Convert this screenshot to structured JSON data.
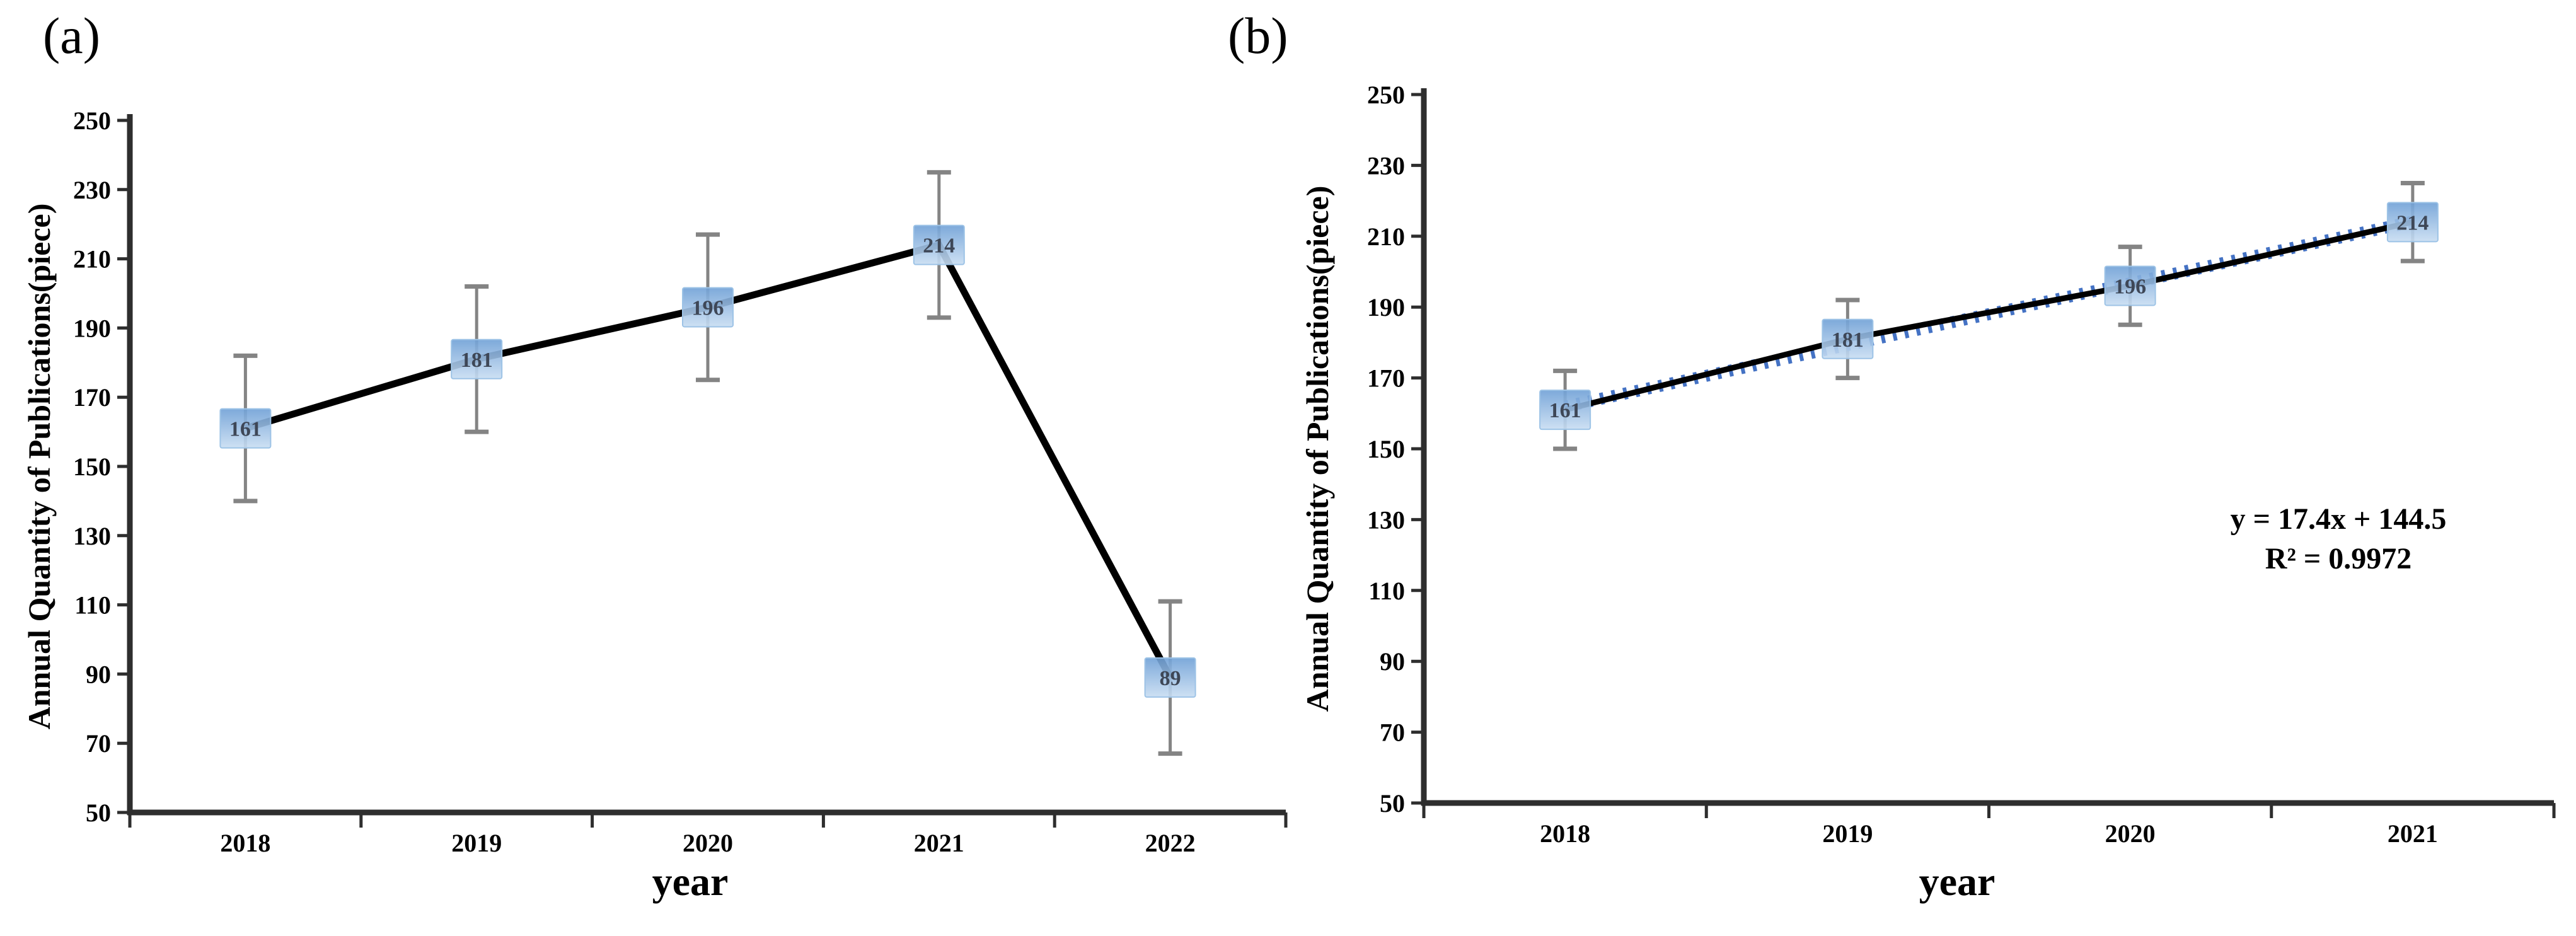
{
  "figure": {
    "background": "#ffffff"
  },
  "chart_data": [
    {
      "type": "line",
      "panel_label": "(a)",
      "title": "",
      "xlabel": "year",
      "ylabel": "Annual Quantity of Publications(piece)",
      "categories": [
        "2018",
        "2019",
        "2020",
        "2021",
        "2022"
      ],
      "series": [
        {
          "name": "Annual Quantity of Publications",
          "values": [
            161,
            181,
            196,
            214,
            89
          ]
        }
      ],
      "data_labels": [
        "161",
        "181",
        "196",
        "214",
        "89"
      ],
      "error_bars": {
        "plus": [
          21,
          21,
          21,
          21,
          22
        ],
        "minus": [
          21,
          21,
          21,
          21,
          22
        ]
      },
      "ylim": [
        50,
        250
      ],
      "ytick_step": 20,
      "yticks": [
        50,
        70,
        90,
        110,
        130,
        150,
        170,
        190,
        210,
        230,
        250
      ],
      "grid": false,
      "legend": "none",
      "marker": "square-with-label",
      "colors": {
        "line": "#000000",
        "marker_top": "#6FA0D6",
        "marker_bottom": "#C8DDF2",
        "marker_border": "#9DC3E6",
        "marker_label": "#3E4757",
        "error_bar": "#848484",
        "axis": "#2E2E2E"
      }
    },
    {
      "type": "line",
      "panel_label": "(b)",
      "title": "",
      "xlabel": "year",
      "ylabel": "Annual Quantity of Publications(piece)",
      "categories": [
        "2018",
        "2019",
        "2020",
        "2021"
      ],
      "series": [
        {
          "name": "Annual Quantity of Publications",
          "values": [
            161,
            181,
            196,
            214
          ]
        }
      ],
      "data_labels": [
        "161",
        "181",
        "196",
        "214"
      ],
      "error_bars": {
        "plus": [
          11,
          11,
          11,
          11
        ],
        "minus": [
          11,
          11,
          11,
          11
        ]
      },
      "ylim": [
        50,
        250
      ],
      "ytick_step": 20,
      "yticks": [
        50,
        70,
        90,
        110,
        130,
        150,
        170,
        190,
        210,
        230,
        250
      ],
      "grid": false,
      "legend": "none",
      "marker": "square-with-label",
      "trendline": {
        "label": "y = 17.4x + 144.5",
        "r_squared_label": "R² = 0.9972",
        "slope": 17.4,
        "intercept": 144.5,
        "style": "dotted",
        "color": "#4472C4"
      },
      "colors": {
        "line": "#000000",
        "marker_top": "#6FA0D6",
        "marker_bottom": "#C8DDF2",
        "marker_border": "#9DC3E6",
        "marker_label": "#3E4757",
        "error_bar": "#848484",
        "axis": "#2E2E2E"
      }
    }
  ]
}
